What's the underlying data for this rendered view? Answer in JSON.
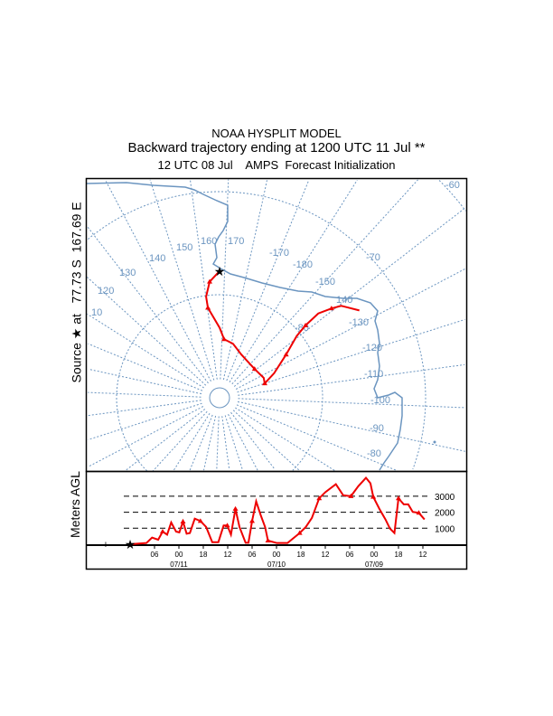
{
  "title": {
    "line1": "NOAA HYSPLIT MODEL",
    "line2": "Backward trajectory ending at 1200 UTC 11 Jul **",
    "line3": "12 UTC 08 Jul    AMPS  Forecast Initialization"
  },
  "source_label": "Source ★ at   77.73 S  167.69 E",
  "colors": {
    "trajectory": "#ee0000",
    "map": "#6b95c0",
    "text": "#000000"
  },
  "chart_data": [
    {
      "type": "line",
      "subtype": "polar-stereographic-map",
      "source": {
        "lat": -77.73,
        "lon": 167.69
      },
      "lat_circles": [
        -80,
        -70,
        -60
      ],
      "meridian_labels": [
        "-60",
        "170",
        "160",
        "150",
        "140",
        "130",
        "120",
        "10",
        "-170",
        "-180",
        "-70",
        "-150",
        "140",
        "-130",
        "-120",
        "-110",
        "-100",
        "-90",
        "-80",
        "-80"
      ],
      "trajectory": {
        "lat": [
          -77.7,
          -78.7,
          -80.1,
          -81.2,
          -83.2,
          -84.3,
          -84.6,
          -85.3,
          -85.6,
          -85.3,
          -85.4,
          -84.2,
          -82.3,
          -80.4,
          -79.1,
          -77.4,
          -76.1,
          -75.2,
          -74.0
        ],
        "lon": [
          167.7,
          162.8,
          160.1,
          160.3,
          167.7,
          172.1,
          -178.3,
          -165.7,
          -141.7,
          -126.5,
          -120,
          -126.5,
          -135.3,
          -141,
          -142.4,
          -142.8,
          -140.9,
          -139.4,
          -134.3
        ]
      }
    },
    {
      "type": "line",
      "ylabel": "Meters AGL",
      "yticks": [
        "1000",
        "2000",
        "3000"
      ],
      "ytick_values": [
        1000,
        2000,
        3000
      ],
      "xtick_labels": [
        "06",
        "00",
        "18",
        "12",
        "06",
        "00",
        "18",
        "12",
        "06",
        "00",
        "18",
        "12"
      ],
      "xdate_labels": [
        {
          "tick": 1,
          "label": "07/11"
        },
        {
          "tick": 5,
          "label": "07/10"
        },
        {
          "tick": 9,
          "label": "07/09"
        }
      ],
      "x_hours_before_end": [
        0,
        4,
        5.4,
        6.9,
        8,
        9.1,
        10.1,
        11.3,
        12.1,
        13,
        13.9,
        14.7,
        15.9,
        17.3,
        18.7,
        20.2,
        21.7,
        23,
        23.9,
        24.8,
        25.9,
        26.9,
        28.4,
        29.1,
        30,
        31,
        32.1,
        33.2,
        33.9,
        36.1,
        38.7,
        41.7,
        43.2,
        44.7,
        46.5,
        48,
        50.6,
        52.4,
        54.3,
        56.1,
        58,
        59.1,
        59.8,
        61.3,
        62.8,
        63.9,
        65,
        66,
        67.3,
        68.4,
        69.5,
        71,
        72.4
      ],
      "meters": [
        0,
        75,
        415,
        283,
        790,
        600,
        1360,
        790,
        740,
        1415,
        660,
        700,
        1600,
        1450,
        1075,
        130,
        130,
        1170,
        1170,
        600,
        2210,
        1075,
        95,
        95,
        1450,
        2680,
        1830,
        1075,
        225,
        75,
        75,
        700,
        1075,
        1640,
        2870,
        3250,
        3755,
        3060,
        3000,
        3620,
        4150,
        3810,
        2960,
        2210,
        1550,
        980,
        700,
        2870,
        2490,
        2490,
        2020,
        1960,
        1550
      ]
    }
  ]
}
